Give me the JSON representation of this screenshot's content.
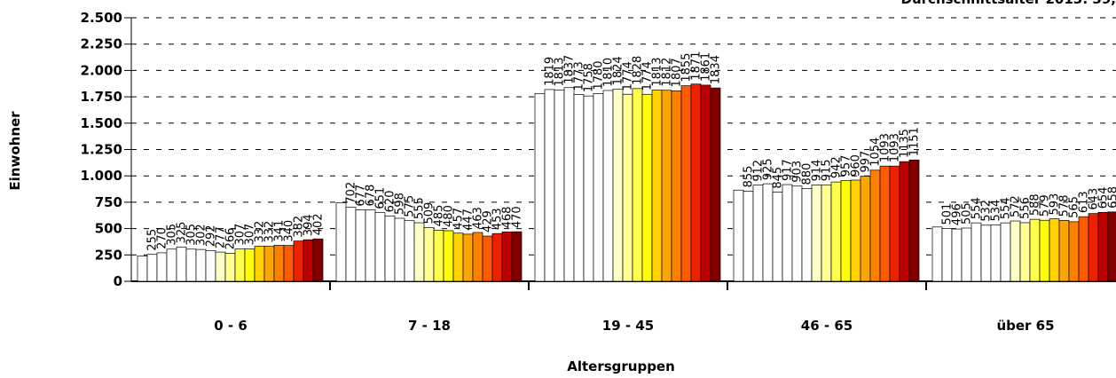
{
  "chart_data": {
    "type": "bar",
    "title": "Durchschnittsalter 2013: 39,",
    "xlabel": "Altersgruppen",
    "ylabel": "Einwohner",
    "categories": [
      "0 - 6",
      "7  - 18",
      "19 - 45",
      "46 - 65",
      "über 65"
    ],
    "ylim": [
      0,
      2500
    ],
    "yticks": [
      0,
      250,
      500,
      750,
      {
        "value": 1000,
        "label": "1.000"
      },
      {
        "value": 1250,
        "label": "1.250"
      },
      {
        "value": 1500,
        "label": "1.500"
      },
      {
        "value": 1750,
        "label": "1.750"
      },
      {
        "value": 2000,
        "label": "2.000"
      },
      {
        "value": 2250,
        "label": "2.250"
      },
      {
        "value": 2500,
        "label": "2.500"
      }
    ],
    "grid": true,
    "series": [
      {
        "color": "#ffffff",
        "values": [
          240,
          745,
          1780,
          865,
          515
        ],
        "value_labels": [
          null,
          null,
          null,
          null,
          null
        ]
      },
      {
        "color": "#ffffff",
        "values": [
          255,
          702,
          1819,
          855,
          501
        ]
      },
      {
        "color": "#ffffff",
        "values": [
          270,
          677,
          1813,
          912,
          496
        ]
      },
      {
        "color": "#ffffff",
        "values": [
          305,
          678,
          1837,
          925,
          505
        ]
      },
      {
        "color": "#ffffff",
        "values": [
          325,
          651,
          1773,
          845,
          554
        ]
      },
      {
        "color": "#ffffff",
        "values": [
          305,
          620,
          1758,
          917,
          532
        ]
      },
      {
        "color": "#ffffff",
        "values": [
          302,
          598,
          1780,
          903,
          534
        ]
      },
      {
        "color": "#ffffff",
        "values": [
          292,
          575,
          1810,
          880,
          554
        ]
      },
      {
        "color": "#ffffc8",
        "values": [
          277,
          555,
          1824,
          914,
          572
        ]
      },
      {
        "color": "#ffff96",
        "values": [
          266,
          509,
          1774,
          915,
          556
        ]
      },
      {
        "color": "#ffff50",
        "values": [
          307,
          485,
          1828,
          942,
          588
        ]
      },
      {
        "color": "#ffff00",
        "values": [
          307,
          480,
          1774,
          957,
          579
        ]
      },
      {
        "color": "#ffd200",
        "values": [
          332,
          457,
          1813,
          960,
          593
        ]
      },
      {
        "color": "#ffa500",
        "values": [
          332,
          447,
          1812,
          997,
          578
        ]
      },
      {
        "color": "#ff8000",
        "values": [
          341,
          463,
          1807,
          1054,
          565
        ]
      },
      {
        "color": "#ff5a00",
        "values": [
          340,
          429,
          1855,
          1093,
          613
        ]
      },
      {
        "color": "#ee2000",
        "values": [
          382,
          453,
          1871,
          1093,
          643
        ]
      },
      {
        "color": "#c00000",
        "values": [
          394,
          468,
          1861,
          1135,
          654
        ]
      },
      {
        "color": "#800000",
        "values": [
          402,
          470,
          1834,
          1151,
          658
        ]
      }
    ]
  }
}
